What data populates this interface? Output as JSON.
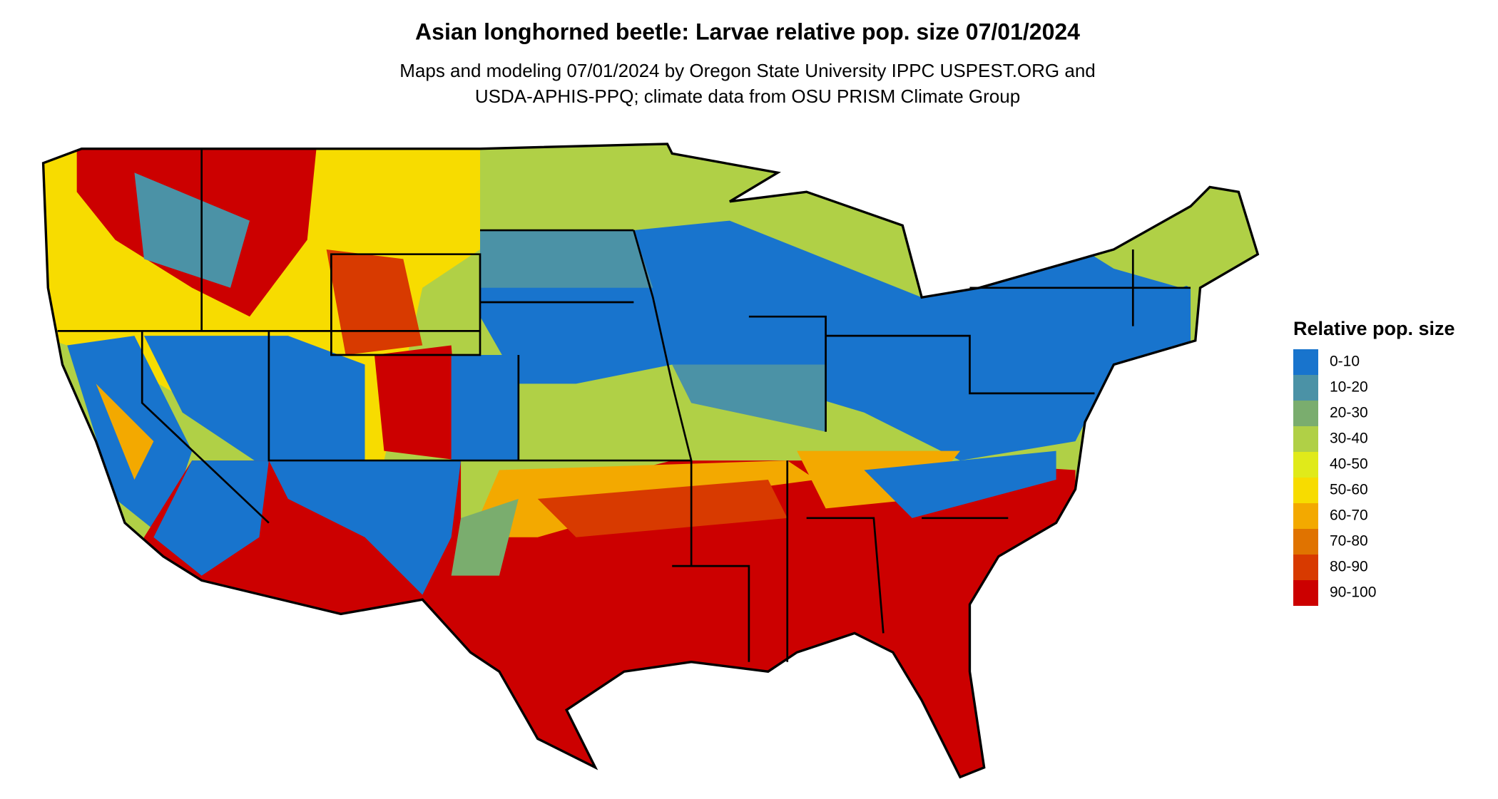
{
  "title": "Asian longhorned beetle: Larvae relative pop. size 07/01/2024",
  "subtitle": [
    "Maps and modeling 07/01/2024 by Oregon State University IPPC USPEST.ORG and",
    "USDA-APHIS-PPQ; climate data from OSU PRISM Climate Group"
  ],
  "legend": {
    "title": "Relative pop. size",
    "items": [
      {
        "label": "0-10",
        "color": "#1874cd"
      },
      {
        "label": "10-20",
        "color": "#4b92a6"
      },
      {
        "label": "20-30",
        "color": "#7aad6e"
      },
      {
        "label": "30-40",
        "color": "#b0d046"
      },
      {
        "label": "40-50",
        "color": "#e0ea1a"
      },
      {
        "label": "50-60",
        "color": "#f7dc00"
      },
      {
        "label": "60-70",
        "color": "#f3a900"
      },
      {
        "label": "70-80",
        "color": "#e07300"
      },
      {
        "label": "80-90",
        "color": "#d83a00"
      },
      {
        "label": "90-100",
        "color": "#cc0000"
      }
    ]
  }
}
